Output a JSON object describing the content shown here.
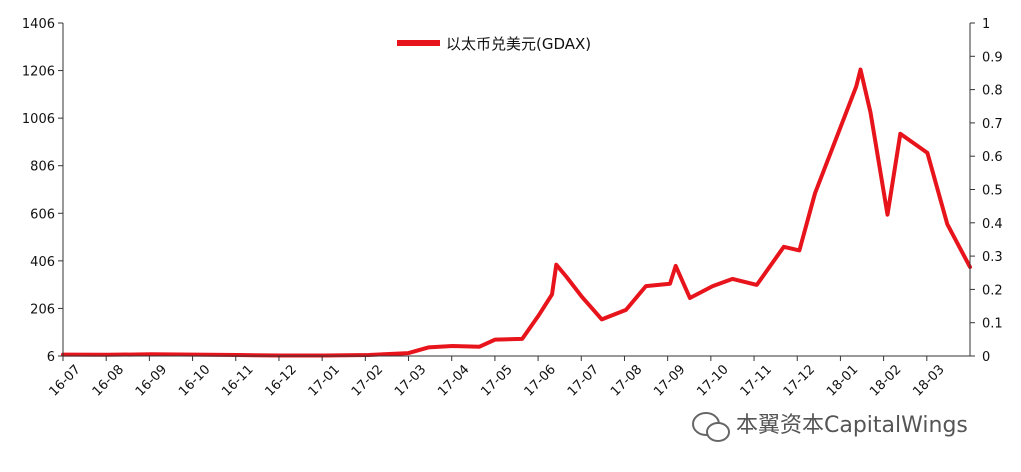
{
  "chart_data": {
    "type": "line",
    "legend": {
      "position": "top",
      "label": "以太币兑美元(GDAX)"
    },
    "watermark": "本翼资本CapitalWings",
    "colors": {
      "line": "#e8141c",
      "axis": "#333333"
    },
    "y_left": {
      "min": 6,
      "max": 1406,
      "ticks": [
        "1406",
        "1206",
        "1006",
        "806",
        "606",
        "406",
        "206",
        "6"
      ]
    },
    "y_right": {
      "min": 0,
      "max": 1,
      "ticks": [
        "1",
        "0.9",
        "0.8",
        "0.7",
        "0.6",
        "0.5",
        "0.4",
        "0.3",
        "0.2",
        "0.1",
        "0"
      ]
    },
    "x_ticks": [
      "16-07",
      "16-08",
      "16-09",
      "16-10",
      "16-11",
      "16-12",
      "17-01",
      "17-02",
      "17-03",
      "17-04",
      "17-05",
      "17-06",
      "17-07",
      "17-08",
      "17-09",
      "17-10",
      "17-11",
      "17-12",
      "18-01",
      "18-02",
      "18-03"
    ],
    "x_range": [
      "2016-07-01",
      "2018-03-31"
    ],
    "grid": false,
    "series": [
      {
        "name": "以太币兑美元(GDAX)",
        "points": [
          [
            "2016-07-01",
            12
          ],
          [
            "2016-08-01",
            11
          ],
          [
            "2016-09-01",
            13
          ],
          [
            "2016-10-01",
            12
          ],
          [
            "2016-11-01",
            10
          ],
          [
            "2016-12-01",
            8
          ],
          [
            "2017-01-01",
            8
          ],
          [
            "2017-02-01",
            10
          ],
          [
            "2017-03-01",
            18
          ],
          [
            "2017-03-15",
            42
          ],
          [
            "2017-04-01",
            48
          ],
          [
            "2017-04-20",
            45
          ],
          [
            "2017-05-01",
            75
          ],
          [
            "2017-05-20",
            78
          ],
          [
            "2017-06-01",
            180
          ],
          [
            "2017-06-10",
            265
          ],
          [
            "2017-06-13",
            390
          ],
          [
            "2017-06-20",
            340
          ],
          [
            "2017-07-01",
            255
          ],
          [
            "2017-07-15",
            160
          ],
          [
            "2017-08-01",
            200
          ],
          [
            "2017-08-15",
            300
          ],
          [
            "2017-09-01",
            310
          ],
          [
            "2017-09-05",
            385
          ],
          [
            "2017-09-15",
            250
          ],
          [
            "2017-10-01",
            300
          ],
          [
            "2017-10-15",
            330
          ],
          [
            "2017-11-01",
            305
          ],
          [
            "2017-11-20",
            465
          ],
          [
            "2017-12-01",
            450
          ],
          [
            "2017-12-12",
            690
          ],
          [
            "2018-01-10",
            1140
          ],
          [
            "2018-01-13",
            1210
          ],
          [
            "2018-01-20",
            1030
          ],
          [
            "2018-02-01",
            600
          ],
          [
            "2018-02-10",
            940
          ],
          [
            "2018-03-01",
            860
          ],
          [
            "2018-03-15",
            560
          ],
          [
            "2018-03-31",
            380
          ]
        ]
      }
    ]
  }
}
